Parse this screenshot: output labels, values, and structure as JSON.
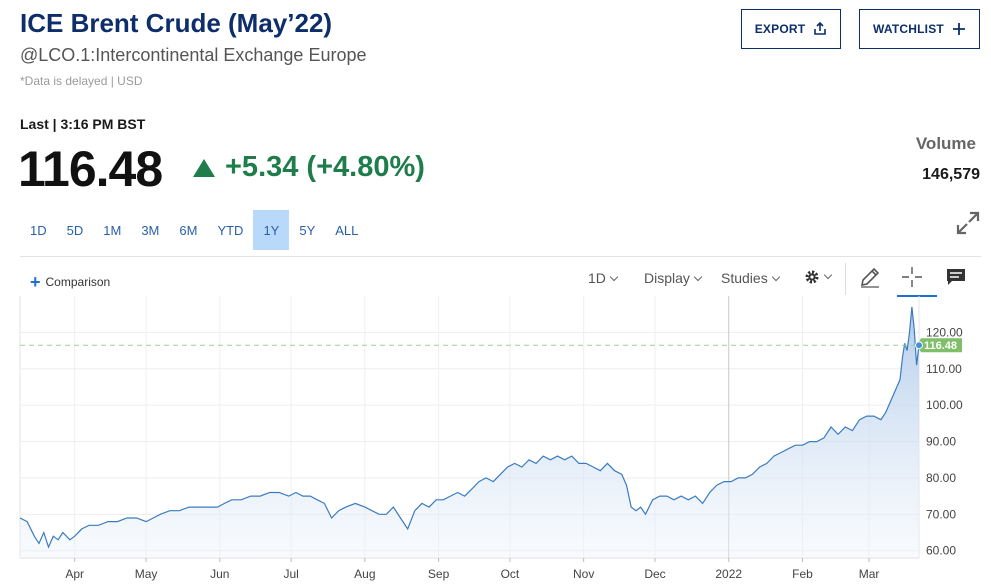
{
  "header": {
    "title": "ICE Brent Crude (May’22)",
    "symbol": "@LCO.1:Intercontinental Exchange Europe",
    "delayed": "*Data is delayed | USD",
    "export_label": "EXPORT",
    "watchlist_label": "WATCHLIST"
  },
  "quote": {
    "last_label": "Last | 3:16 PM BST",
    "price": "116.48",
    "change": "+5.34 (+4.80%)",
    "volume_label": "Volume",
    "volume": "146,579",
    "change_color": "#1e7d4b"
  },
  "ranges": [
    "1D",
    "5D",
    "1M",
    "3M",
    "6M",
    "YTD",
    "1Y",
    "5Y",
    "ALL"
  ],
  "active_range": "1Y",
  "toolbar": {
    "comparison_label": "Comparison",
    "interval_label": "1D",
    "display_label": "Display",
    "studies_label": "Studies"
  },
  "chart_data": {
    "type": "area",
    "series_color": "#3a7cc0",
    "current_value": 116.48,
    "current_label": "116.48",
    "current_label_color": "#7fbf6a",
    "ylim": [
      58,
      130
    ],
    "yticks": [
      "60.00",
      "70.00",
      "80.00",
      "90.00",
      "100.00",
      "110.00",
      "120.00"
    ],
    "ytick_values": [
      60,
      70,
      80,
      90,
      100,
      110,
      120
    ],
    "month_labels": [
      "Apr",
      "May",
      "Jun",
      "Jul",
      "Aug",
      "Sep",
      "Oct",
      "Nov",
      "Dec",
      "2022",
      "Feb",
      "Mar"
    ],
    "month_start_days": [
      0,
      30,
      61,
      91,
      122,
      153,
      183,
      214,
      244,
      275,
      306,
      334
    ],
    "xlim_days": [
      -23,
      355
    ],
    "year_divider_day": 275,
    "x": [
      -23,
      -20,
      -17,
      -15,
      -13,
      -11,
      -9,
      -7,
      -5,
      -2,
      0,
      3,
      6,
      10,
      14,
      18,
      22,
      26,
      30,
      33,
      36,
      40,
      44,
      48,
      52,
      56,
      60,
      63,
      66,
      70,
      74,
      78,
      82,
      86,
      90,
      93,
      96,
      99,
      102,
      105,
      108,
      111,
      114,
      118,
      122,
      125,
      128,
      131,
      134,
      137,
      140,
      143,
      146,
      149,
      152,
      155,
      158,
      161,
      164,
      167,
      170,
      173,
      176,
      179,
      182,
      185,
      188,
      191,
      194,
      197,
      200,
      203,
      206,
      209,
      212,
      215,
      218,
      221,
      224,
      227,
      230,
      232,
      234,
      236,
      238,
      240,
      243,
      246,
      249,
      252,
      255,
      258,
      261,
      264,
      267,
      270,
      273,
      276,
      279,
      282,
      285,
      288,
      291,
      294,
      297,
      300,
      303,
      306,
      309,
      312,
      315,
      318,
      321,
      324,
      327,
      330,
      333,
      336,
      339,
      341,
      343,
      345,
      347,
      348,
      349,
      350,
      351,
      352,
      353,
      354,
      355
    ],
    "y": [
      69,
      68,
      64,
      62,
      65,
      61,
      64,
      63,
      65,
      63,
      64,
      66,
      67,
      67,
      68,
      68,
      69,
      69,
      68,
      69,
      70,
      71,
      71,
      72,
      72,
      72,
      72,
      73,
      74,
      74,
      75,
      75,
      76,
      76,
      75,
      76,
      75,
      75,
      74,
      73,
      69,
      71,
      72,
      73,
      72,
      71,
      70,
      70,
      72,
      69,
      66,
      71,
      73,
      72,
      74,
      74,
      75,
      76,
      75,
      77,
      79,
      80,
      79,
      81,
      83,
      84,
      83,
      85,
      84,
      86,
      85,
      86,
      85,
      86,
      84,
      84,
      83,
      82,
      84,
      82,
      81,
      78,
      72,
      71,
      72,
      70,
      74,
      75,
      75,
      74,
      75,
      74,
      75,
      73,
      76,
      78,
      79,
      79,
      80,
      80,
      81,
      83,
      84,
      86,
      87,
      88,
      89,
      89,
      90,
      90,
      91,
      94,
      92,
      94,
      93,
      96,
      97,
      97,
      96,
      98,
      101,
      104,
      107,
      113,
      117,
      115,
      120,
      127,
      121,
      111,
      116.48
    ]
  }
}
